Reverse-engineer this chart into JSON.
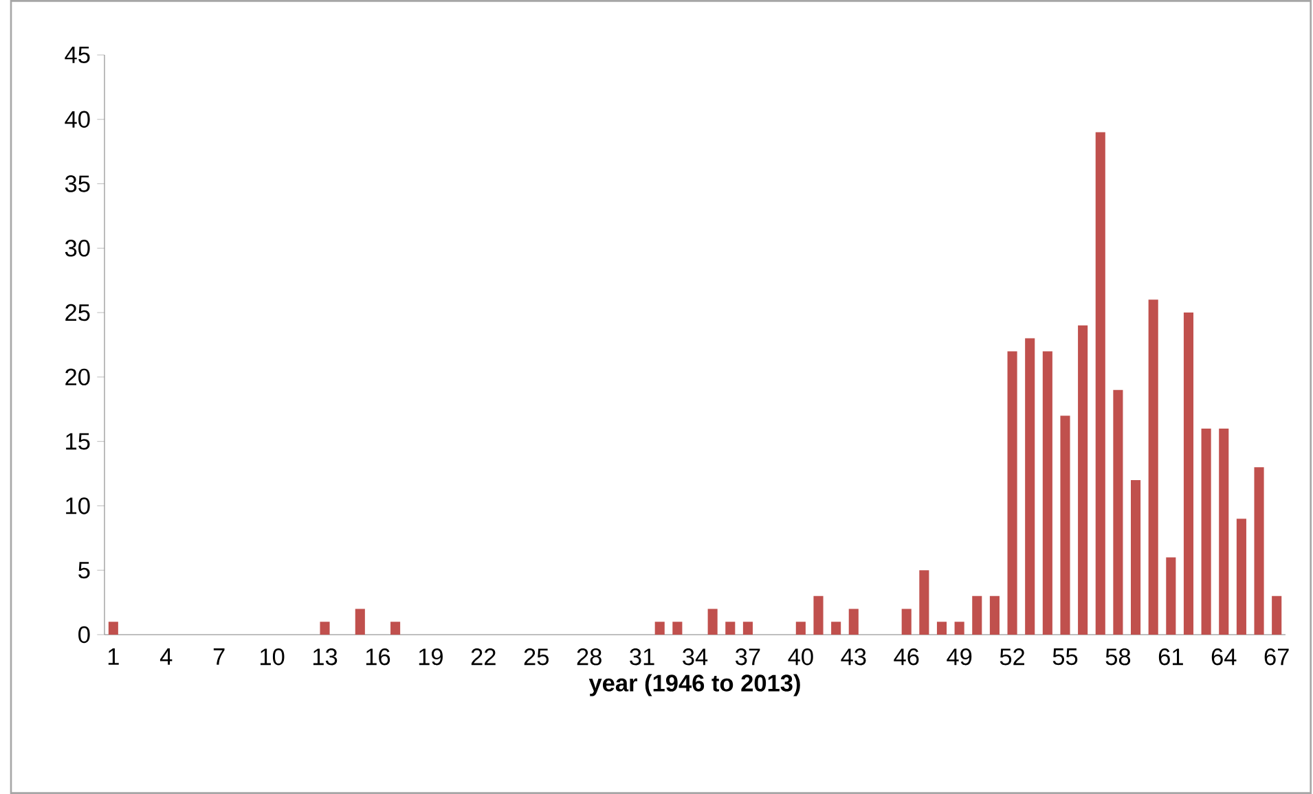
{
  "chart_data": {
    "type": "bar",
    "xlabel": "year (1946 to 2013)",
    "categories": [
      "1",
      null,
      null,
      "4",
      null,
      null,
      "7",
      null,
      null,
      "10",
      null,
      null,
      "13",
      null,
      null,
      "16",
      null,
      null,
      "19",
      null,
      null,
      "22",
      null,
      null,
      "25",
      null,
      null,
      "28",
      null,
      null,
      "31",
      null,
      null,
      "34",
      null,
      null,
      "37",
      null,
      null,
      "40",
      null,
      null,
      "43",
      null,
      null,
      "46",
      null,
      null,
      "49",
      null,
      null,
      "52",
      null,
      null,
      "55",
      null,
      null,
      "58",
      null,
      null,
      "61",
      null,
      null,
      "64",
      null,
      null,
      "67"
    ],
    "values": [
      1,
      0,
      0,
      0,
      0,
      0,
      0,
      0,
      0,
      0,
      0,
      0,
      1,
      0,
      2,
      0,
      1,
      0,
      0,
      0,
      0,
      0,
      0,
      0,
      0,
      0,
      0,
      0,
      0,
      0,
      0,
      1,
      1,
      0,
      2,
      1,
      1,
      0,
      0,
      1,
      3,
      1,
      2,
      0,
      0,
      2,
      5,
      1,
      1,
      3,
      3,
      22,
      23,
      22,
      17,
      24,
      39,
      19,
      12,
      26,
      6,
      25,
      16,
      16,
      9,
      13,
      3
    ],
    "color": "#c0504d",
    "ylim": [
      0,
      45
    ],
    "yticks": [
      0,
      5,
      10,
      15,
      20,
      25,
      30,
      35,
      40,
      45
    ]
  }
}
